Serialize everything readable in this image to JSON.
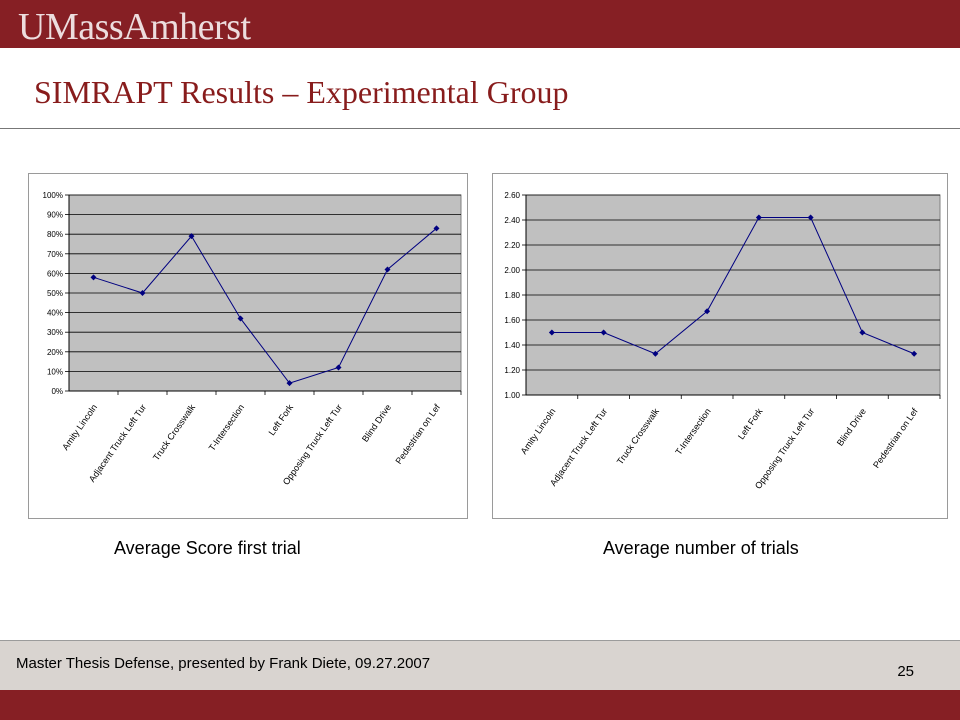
{
  "header": {
    "logo_text": "UMassAmherst"
  },
  "slide": {
    "title": "SIMRAPT Results – Experimental Group"
  },
  "captions": {
    "left": "Average Score first trial",
    "right": "Average number of trials"
  },
  "footer": {
    "text": "Master Thesis Defense, presented by Frank Diete, 09.27.2007",
    "page": "25"
  },
  "colors": {
    "brand": "#861f24",
    "title": "#881c1c",
    "plot_bg": "#c0c0c0",
    "line": "#000080"
  },
  "chart_data": [
    {
      "type": "line",
      "categories": [
        "Amity Lincoln",
        "Adjacent Truck Left Tur",
        "Truck Crosswalk",
        "T-Intersection",
        "Left Fork",
        "Opposing Truck Left Tur",
        "Blind Drive",
        "Pedestrian on Lef"
      ],
      "values": [
        58,
        50,
        79,
        37,
        4,
        12,
        62,
        83
      ],
      "unit": "%",
      "ylim": [
        0,
        100
      ],
      "yticks": [
        0,
        10,
        20,
        30,
        40,
        50,
        60,
        70,
        80,
        90,
        100
      ],
      "ytick_labels": [
        "0%",
        "10%",
        "20%",
        "30%",
        "40%",
        "50%",
        "60%",
        "70%",
        "80%",
        "90%",
        "100%"
      ],
      "grid": true,
      "legend": "none"
    },
    {
      "type": "line",
      "categories": [
        "Amity Lincoln",
        "Adjacent Truck Left Tur",
        "Truck Crosswalk",
        "T-Intersection",
        "Left Fork",
        "Opposing Truck Left Tur",
        "Blind Drive",
        "Pedestrian on Lef"
      ],
      "values": [
        1.5,
        1.5,
        1.33,
        1.67,
        2.42,
        2.42,
        1.5,
        1.33
      ],
      "ylim": [
        1.0,
        2.6
      ],
      "yticks": [
        1.0,
        1.2,
        1.4,
        1.6,
        1.8,
        2.0,
        2.2,
        2.4,
        2.6
      ],
      "ytick_labels": [
        "1.00",
        "1.20",
        "1.40",
        "1.60",
        "1.80",
        "2.00",
        "2.20",
        "2.40",
        "2.60"
      ],
      "grid": true,
      "legend": "none"
    }
  ]
}
